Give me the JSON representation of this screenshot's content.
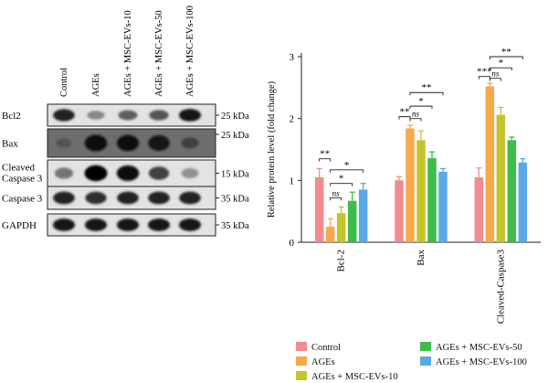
{
  "blot": {
    "lanes": [
      "Control",
      "AGEs",
      "AGEs + MSC-EVs-10",
      "AGEs + MSC-EVs-50",
      "AGEs + MSC-EVs-100"
    ],
    "rows": [
      {
        "label": "Bcl2",
        "label2": "",
        "size": "25 kDa",
        "size_top": "",
        "style": "light",
        "bands": [
          0.85,
          0.35,
          0.55,
          0.6,
          0.9
        ]
      },
      {
        "label": "Bax",
        "label2": "",
        "size": "",
        "size_top": "25 kDa",
        "style": "dark",
        "bands": [
          0.15,
          0.95,
          0.9,
          0.85,
          0.35
        ]
      },
      {
        "label": "Cleaved",
        "label2": "Caspase 3",
        "size": "15 kDa",
        "size_top": "",
        "style": "light",
        "bands": [
          0.45,
          1.0,
          0.95,
          0.7,
          0.3
        ]
      },
      {
        "label": "Caspase 3",
        "label2": "",
        "size": "35 kDa",
        "size_top": "",
        "style": "light",
        "bands": [
          0.85,
          0.8,
          0.85,
          0.85,
          0.85
        ]
      },
      {
        "label": "GAPDH",
        "label2": "",
        "size": "35 kDa",
        "size_top": "",
        "style": "light",
        "bands": [
          0.9,
          0.9,
          0.9,
          0.9,
          0.9
        ]
      }
    ]
  },
  "colors": {
    "Control": "#f28b8e",
    "AGEs": "#f8a84a",
    "AGEs + MSC-EVs-10": "#c3c52a",
    "AGEs + MSC-EVs-50": "#3fbb4a",
    "AGEs + MSC-EVs-100": "#5aa9e6"
  },
  "chart_data": {
    "type": "bar",
    "ylabel": "Relative protein level (fold change)",
    "ylim": [
      0,
      3
    ],
    "yticks": [
      "0",
      "1",
      "2",
      "3"
    ],
    "categories": [
      "Bcl-2",
      "Bax",
      "Cleaved-Caspase3"
    ],
    "series": [
      {
        "name": "Control",
        "values": [
          1.05,
          1.0,
          1.05
        ],
        "errors": [
          0.14,
          0.06,
          0.15
        ]
      },
      {
        "name": "AGEs",
        "values": [
          0.25,
          1.84,
          2.52
        ],
        "errors": [
          0.13,
          0.05,
          0.05
        ]
      },
      {
        "name": "AGEs + MSC-EVs-10",
        "values": [
          0.47,
          1.65,
          2.06
        ],
        "errors": [
          0.1,
          0.15,
          0.12
        ]
      },
      {
        "name": "AGEs + MSC-EVs-50",
        "values": [
          0.67,
          1.36,
          1.65
        ],
        "errors": [
          0.14,
          0.1,
          0.05
        ]
      },
      {
        "name": "AGEs + MSC-EVs-100",
        "values": [
          0.85,
          1.14,
          1.29
        ],
        "errors": [
          0.1,
          0.05,
          0.06
        ]
      }
    ],
    "significance": [
      {
        "category": 0,
        "from": 0,
        "to": 1,
        "label": "**",
        "y": 1.35
      },
      {
        "category": 0,
        "from": 1,
        "to": 2,
        "label": "ns",
        "y": 0.72
      },
      {
        "category": 0,
        "from": 1,
        "to": 3,
        "label": "*",
        "y": 0.95
      },
      {
        "category": 0,
        "from": 1,
        "to": 4,
        "label": "*",
        "y": 1.17
      },
      {
        "category": 1,
        "from": 0,
        "to": 1,
        "label": "**",
        "y": 2.03
      },
      {
        "category": 1,
        "from": 1,
        "to": 2,
        "label": "ns",
        "y": 2.0
      },
      {
        "category": 1,
        "from": 1,
        "to": 3,
        "label": "*",
        "y": 2.2
      },
      {
        "category": 1,
        "from": 1,
        "to": 4,
        "label": "**",
        "y": 2.42
      },
      {
        "category": 2,
        "from": 0,
        "to": 1,
        "label": "***",
        "y": 2.68
      },
      {
        "category": 2,
        "from": 1,
        "to": 2,
        "label": "ns",
        "y": 2.65
      },
      {
        "category": 2,
        "from": 1,
        "to": 3,
        "label": "*",
        "y": 2.82
      },
      {
        "category": 2,
        "from": 1,
        "to": 4,
        "label": "**",
        "y": 3.0
      }
    ]
  },
  "legend": {
    "items": [
      {
        "name": "Control"
      },
      {
        "name": "AGEs"
      },
      {
        "name": "AGEs + MSC-EVs-10"
      },
      {
        "name": "AGEs + MSC-EVs-50"
      },
      {
        "name": "AGEs + MSC-EVs-100"
      }
    ]
  }
}
